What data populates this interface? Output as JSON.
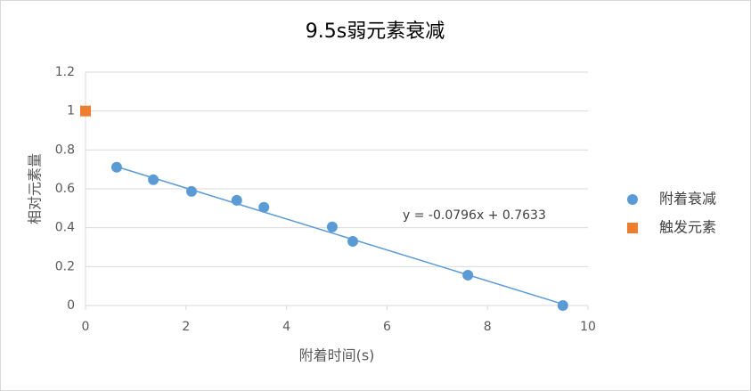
{
  "chart_data": {
    "type": "scatter",
    "title": "9.5s弱元素衰减",
    "xlabel": "附着时间(s)",
    "ylabel": "相对元素量",
    "series": [
      {
        "name": "附着衰减",
        "color": "#5b9bd5",
        "marker": "circle",
        "x": [
          0.62,
          1.35,
          2.11,
          3.01,
          3.55,
          4.91,
          5.32,
          7.61,
          9.5
        ],
        "values": [
          0.711,
          0.647,
          0.587,
          0.541,
          0.505,
          0.404,
          0.33,
          0.156,
          0.0
        ]
      },
      {
        "name": "触发元素",
        "color": "#ed7d31",
        "marker": "square",
        "x": [
          0
        ],
        "values": [
          1
        ]
      }
    ],
    "trendline": {
      "series": 0,
      "slope": -0.0796,
      "intercept": 0.7633,
      "label": "y = -0.0796x + 0.7633",
      "color": "#5b9bd5"
    },
    "xlim": [
      0,
      10
    ],
    "xticks": [
      0,
      2,
      4,
      6,
      8,
      10
    ],
    "ylim": [
      0,
      1.2
    ],
    "yticks": [
      0,
      0.2,
      0.4,
      0.6,
      0.8,
      1,
      1.2
    ],
    "grid": true,
    "legend": "right"
  }
}
